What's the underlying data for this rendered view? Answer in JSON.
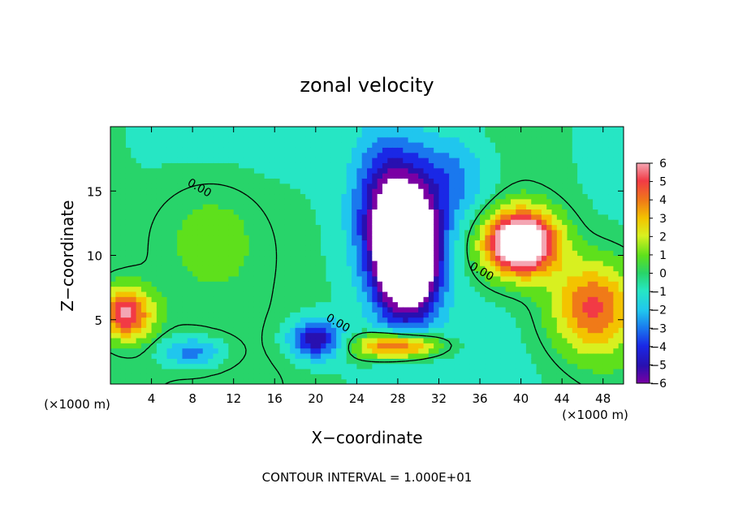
{
  "chart_data": {
    "type": "heatmap",
    "title": "zonal velocity",
    "xlabel": "X−coordinate",
    "ylabel": "Z−coordinate",
    "x_unit_left": "(×1000 m)",
    "x_unit_right": "(×1000 m)",
    "xlim": [
      0,
      50
    ],
    "ylim": [
      0,
      20
    ],
    "xticks": [
      "4",
      "8",
      "12",
      "16",
      "20",
      "24",
      "28",
      "32",
      "36",
      "40",
      "44",
      "48"
    ],
    "yticks": [
      "5",
      "10",
      "15"
    ],
    "colorbar_ticks": [
      "6",
      "5",
      "4",
      "3",
      "2",
      "1",
      "0",
      "−1",
      "−2",
      "−3",
      "−4",
      "−5",
      "−6"
    ],
    "colorbar_range": [
      -6,
      6
    ],
    "contour_label": "0.00",
    "footer": "CONTOUR INTERVAL = 1.000E+01",
    "features": [
      {
        "kind": "min",
        "x": 29,
        "z": 10,
        "amp": -12,
        "w": 3.0,
        "h": 4.5
      },
      {
        "kind": "min",
        "x": 27,
        "z": 14,
        "amp": -5,
        "w": 3.5,
        "h": 6.0
      },
      {
        "kind": "min",
        "x": 33,
        "z": 16,
        "amp": -3,
        "w": 4.0,
        "h": 4.0
      },
      {
        "kind": "max",
        "x": 40,
        "z": 11,
        "amp": 10,
        "w": 3.5,
        "h": 2.5
      },
      {
        "kind": "max",
        "x": 47,
        "z": 6,
        "amp": 5,
        "w": 4.0,
        "h": 3.5
      },
      {
        "kind": "max",
        "x": 1.5,
        "z": 5.5,
        "amp": 6,
        "w": 2.5,
        "h": 2.0
      },
      {
        "kind": "max",
        "x": 28,
        "z": 3,
        "amp": 6,
        "w": 4.0,
        "h": 1.0
      },
      {
        "kind": "max",
        "x": 10,
        "z": 12,
        "amp": 1.5,
        "w": 6.0,
        "h": 5.0
      },
      {
        "kind": "min",
        "x": 20,
        "z": 3.5,
        "amp": -5,
        "w": 2.5,
        "h": 1.5
      },
      {
        "kind": "min",
        "x": 8,
        "z": 2.5,
        "amp": -3,
        "w": 3.0,
        "h": 1.2
      }
    ]
  }
}
